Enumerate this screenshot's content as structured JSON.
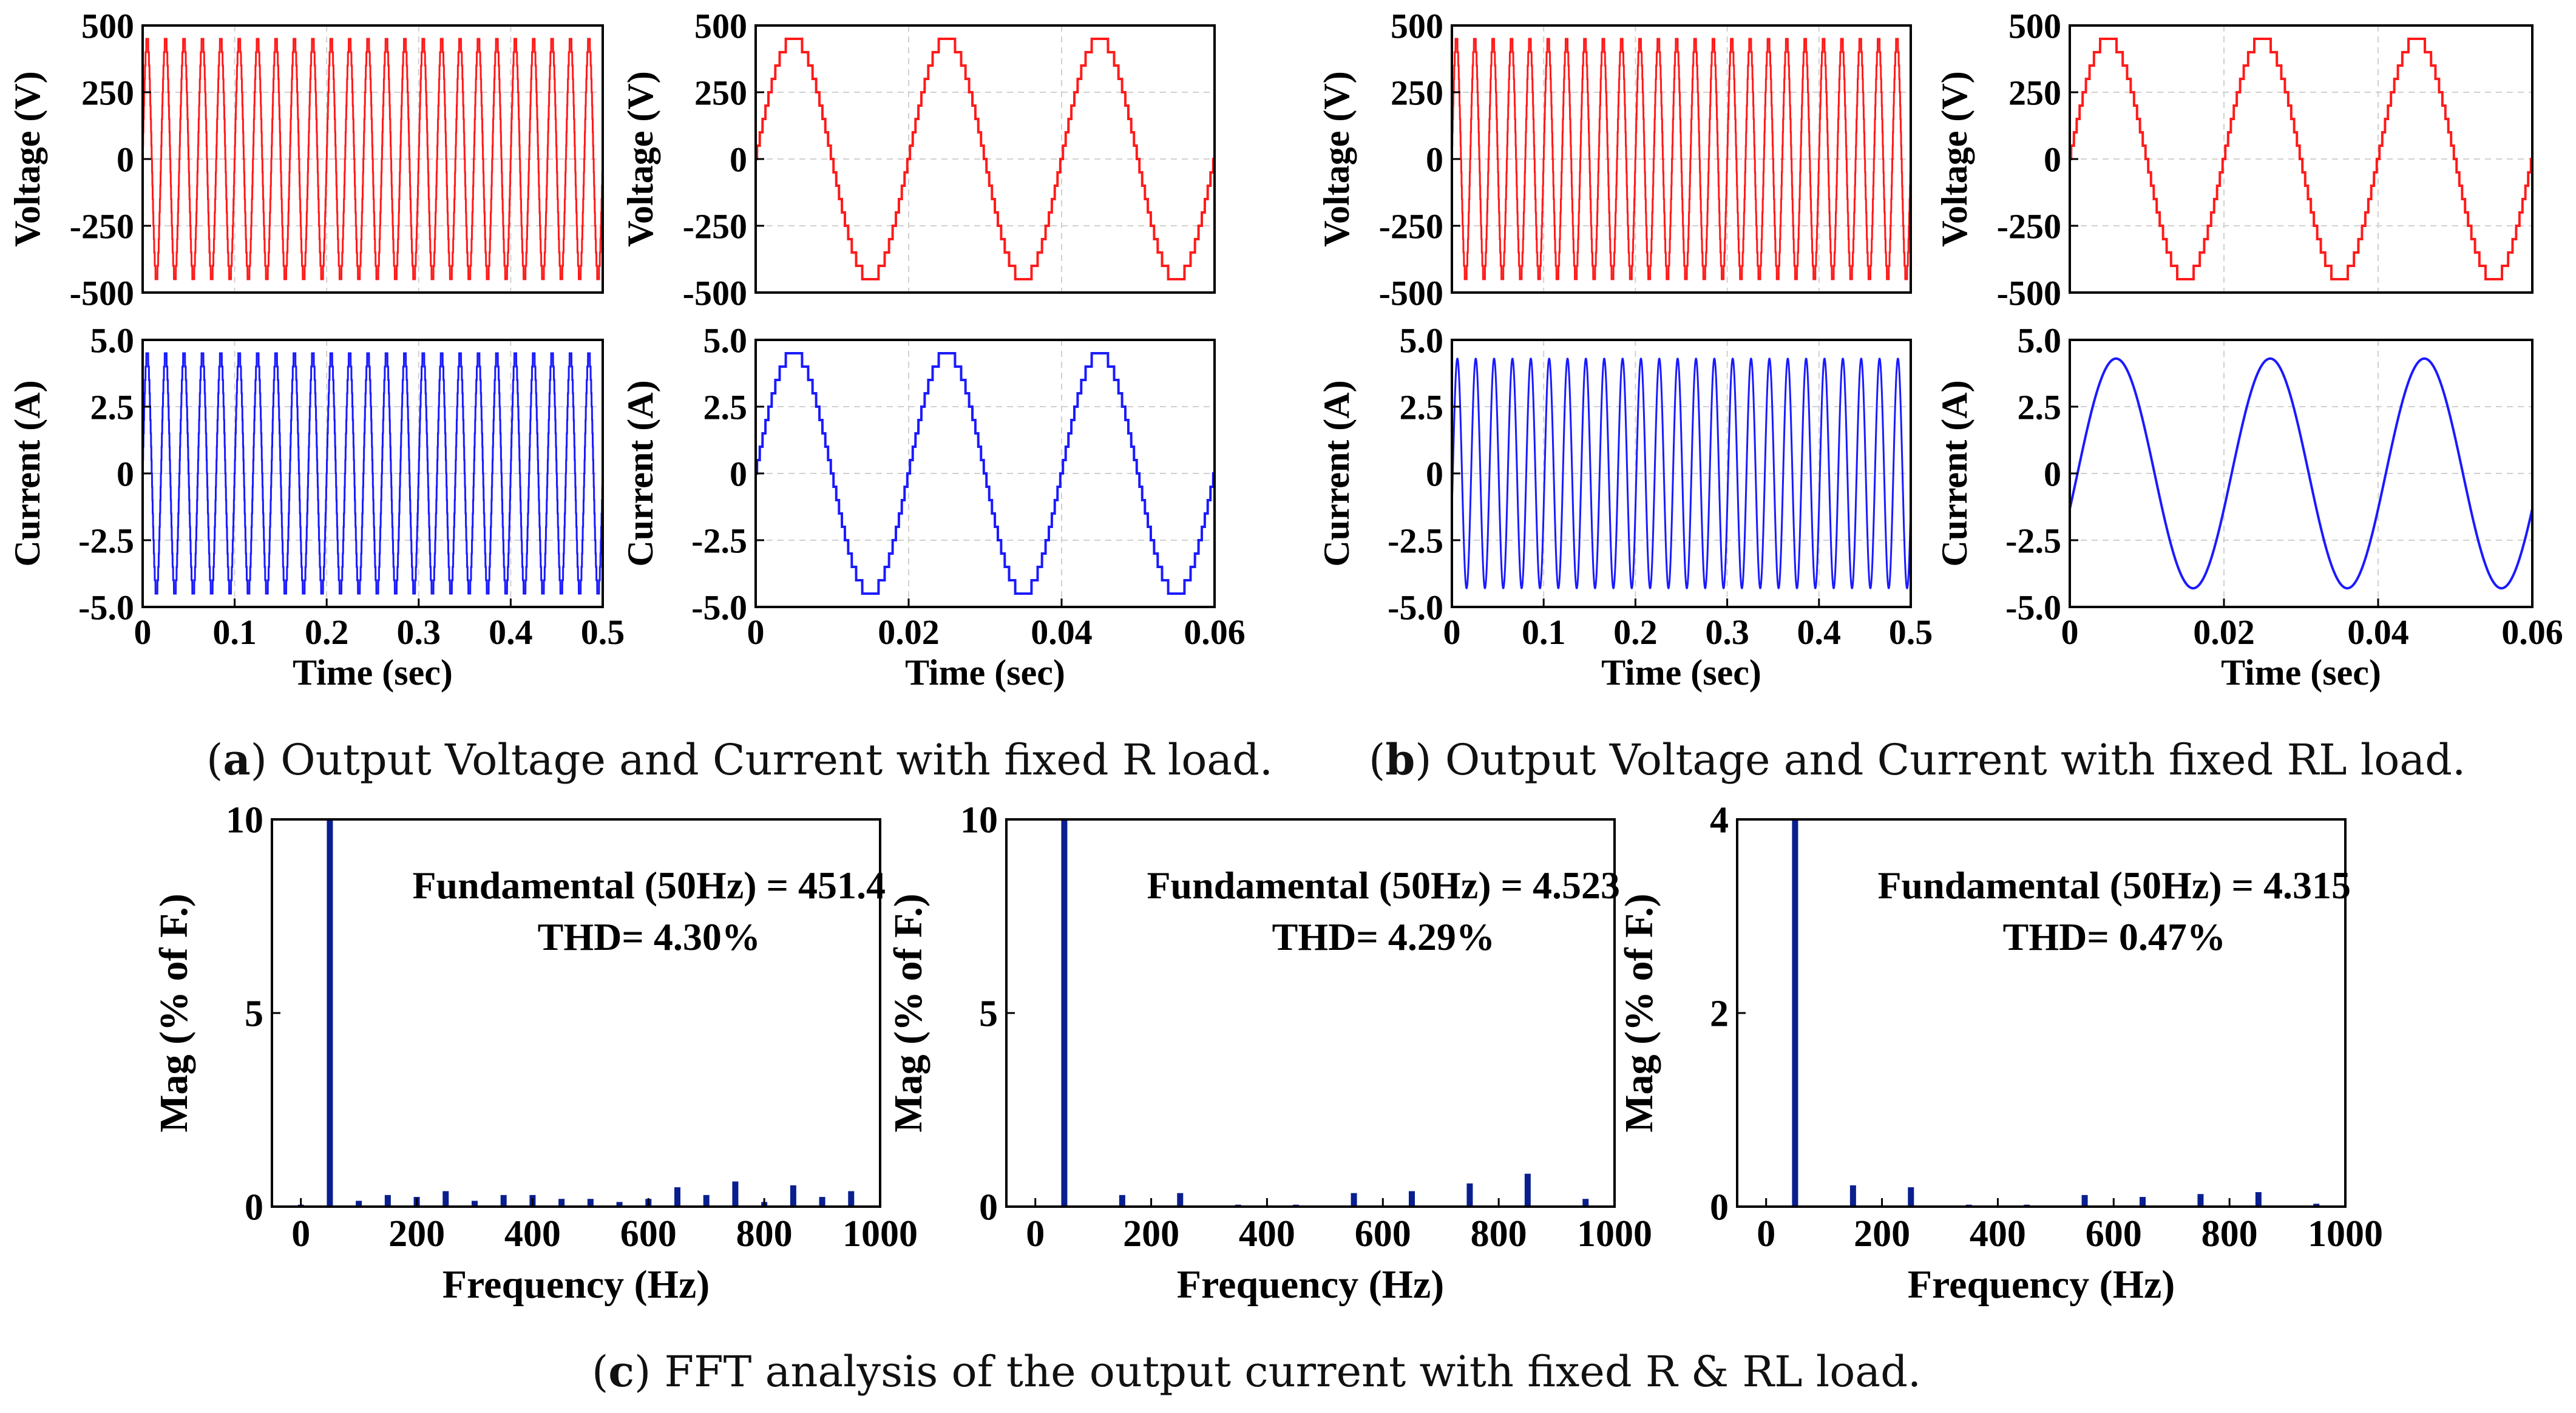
{
  "colors": {
    "voltage": "#ff1a1a",
    "current": "#1a1aff",
    "fft_bar": "#0a1f8f",
    "grid": "#d0d0d0",
    "axis": "#000000"
  },
  "captions": {
    "a": {
      "letter": "a",
      "text": "Output Voltage and Current with fixed R load."
    },
    "b": {
      "letter": "b",
      "text": "Output Voltage and Current with fixed RL load."
    },
    "c": {
      "letter": "c",
      "text": "FFT analysis of the output current with fixed R & RL load."
    }
  },
  "chart_data": [
    {
      "id": "a-voltage-full",
      "type": "line",
      "ylabel": "Voltage (V)",
      "xlabel": "",
      "xlim": [
        0,
        0.5
      ],
      "ylim": [
        -500,
        500
      ],
      "yticks": [
        -500,
        -250,
        0,
        250,
        500
      ],
      "ytick_labels": [
        "-500",
        "-250",
        "0",
        "250",
        "500"
      ],
      "xticks": [],
      "xtick_labels": [],
      "grid": true,
      "series": [
        {
          "waveform": "staircase-sine",
          "amplitude": 450,
          "frequency_hz": 50,
          "steps": 9,
          "color": "voltage"
        }
      ]
    },
    {
      "id": "a-voltage-zoom",
      "type": "line",
      "ylabel": "Voltage (V)",
      "xlabel": "",
      "xlim": [
        0,
        0.06
      ],
      "ylim": [
        -500,
        500
      ],
      "yticks": [
        -500,
        -250,
        0,
        250,
        500
      ],
      "ytick_labels": [
        "-500",
        "-250",
        "0",
        "250",
        "500"
      ],
      "xticks": [],
      "xtick_labels": [],
      "grid": true,
      "series": [
        {
          "waveform": "staircase-sine",
          "amplitude": 450,
          "frequency_hz": 50,
          "steps": 9,
          "color": "voltage"
        }
      ]
    },
    {
      "id": "a-current-full",
      "type": "line",
      "ylabel": "Current (A)",
      "xlabel": "Time (sec)",
      "xlim": [
        0,
        0.5
      ],
      "ylim": [
        -5,
        5
      ],
      "yticks": [
        -5,
        -2.5,
        0,
        2.5,
        5
      ],
      "ytick_labels": [
        "-5.0",
        "-2.5",
        "0",
        "2.5",
        "5.0"
      ],
      "xticks": [
        0,
        0.1,
        0.2,
        0.3,
        0.4,
        0.5
      ],
      "xtick_labels": [
        "0",
        "0.1",
        "0.2",
        "0.3",
        "0.4",
        "0.5"
      ],
      "grid": true,
      "series": [
        {
          "waveform": "staircase-sine",
          "amplitude": 4.5,
          "frequency_hz": 50,
          "steps": 9,
          "color": "current"
        }
      ]
    },
    {
      "id": "a-current-zoom",
      "type": "line",
      "ylabel": "Current (A)",
      "xlabel": "Time (sec)",
      "xlim": [
        0,
        0.06
      ],
      "ylim": [
        -5,
        5
      ],
      "yticks": [
        -5,
        -2.5,
        0,
        2.5,
        5
      ],
      "ytick_labels": [
        "-5.0",
        "-2.5",
        "0",
        "2.5",
        "5.0"
      ],
      "xticks": [
        0,
        0.02,
        0.04,
        0.06
      ],
      "xtick_labels": [
        "0",
        "0.02",
        "0.04",
        "0.06"
      ],
      "grid": true,
      "series": [
        {
          "waveform": "staircase-sine",
          "amplitude": 4.5,
          "frequency_hz": 50,
          "steps": 9,
          "color": "current"
        }
      ]
    },
    {
      "id": "b-voltage-full",
      "type": "line",
      "ylabel": "Voltage (V)",
      "xlabel": "",
      "xlim": [
        0,
        0.5
      ],
      "ylim": [
        -500,
        500
      ],
      "yticks": [
        -500,
        -250,
        0,
        250,
        500
      ],
      "ytick_labels": [
        "-500",
        "-250",
        "0",
        "250",
        "500"
      ],
      "xticks": [],
      "xtick_labels": [],
      "grid": true,
      "series": [
        {
          "waveform": "staircase-sine",
          "amplitude": 450,
          "frequency_hz": 50,
          "steps": 9,
          "color": "voltage"
        }
      ]
    },
    {
      "id": "b-voltage-zoom",
      "type": "line",
      "ylabel": "Voltage (V)",
      "xlabel": "",
      "xlim": [
        0,
        0.06
      ],
      "ylim": [
        -500,
        500
      ],
      "yticks": [
        -500,
        -250,
        0,
        250,
        500
      ],
      "ytick_labels": [
        "-500",
        "-250",
        "0",
        "250",
        "500"
      ],
      "xticks": [],
      "xtick_labels": [],
      "grid": true,
      "series": [
        {
          "waveform": "staircase-sine",
          "amplitude": 450,
          "frequency_hz": 50,
          "steps": 9,
          "color": "voltage"
        }
      ]
    },
    {
      "id": "b-current-full",
      "type": "line",
      "ylabel": "Current (A)",
      "xlabel": "Time (sec)",
      "xlim": [
        0,
        0.5
      ],
      "ylim": [
        -5,
        5
      ],
      "yticks": [
        -5,
        -2.5,
        0,
        2.5,
        5
      ],
      "ytick_labels": [
        "-5.0",
        "-2.5",
        "0",
        "2.5",
        "5.0"
      ],
      "xticks": [
        0,
        0.1,
        0.2,
        0.3,
        0.4,
        0.5
      ],
      "xtick_labels": [
        "0",
        "0.1",
        "0.2",
        "0.3",
        "0.4",
        "0.5"
      ],
      "grid": true,
      "series": [
        {
          "waveform": "sine",
          "amplitude": 4.3,
          "frequency_hz": 50,
          "phase_lag_s": 0.001,
          "color": "current"
        }
      ]
    },
    {
      "id": "b-current-zoom",
      "type": "line",
      "ylabel": "Current (A)",
      "xlabel": "Time (sec)",
      "xlim": [
        0,
        0.06
      ],
      "ylim": [
        -5,
        5
      ],
      "yticks": [
        -5,
        -2.5,
        0,
        2.5,
        5
      ],
      "ytick_labels": [
        "-5.0",
        "-2.5",
        "0",
        "2.5",
        "5.0"
      ],
      "xticks": [
        0,
        0.02,
        0.04,
        0.06
      ],
      "xtick_labels": [
        "0",
        "0.02",
        "0.04",
        "0.06"
      ],
      "grid": true,
      "series": [
        {
          "waveform": "sine",
          "amplitude": 4.3,
          "frequency_hz": 50,
          "phase_lag_s": 0.001,
          "color": "current"
        }
      ]
    },
    {
      "id": "c-fft-1",
      "type": "bar",
      "ylabel": "Mag (% of F.)",
      "xlabel": "Frequency (Hz)",
      "xlim": [
        -50,
        1000
      ],
      "ylim": [
        0,
        10
      ],
      "yticks": [
        0,
        5,
        10
      ],
      "ytick_labels": [
        "0",
        "5",
        "10"
      ],
      "xticks": [
        0,
        200,
        400,
        600,
        800,
        1000
      ],
      "xtick_labels": [
        "0",
        "200",
        "400",
        "600",
        "800",
        "1000"
      ],
      "grid": false,
      "annotation": [
        "Fundamental (50Hz) = 451.4",
        "THD= 4.30%"
      ],
      "x": [
        0,
        50,
        100,
        150,
        200,
        250,
        300,
        350,
        400,
        450,
        500,
        550,
        600,
        650,
        700,
        750,
        800,
        850,
        900,
        950
      ],
      "values": [
        0.05,
        10,
        0.15,
        0.3,
        0.25,
        0.4,
        0.15,
        0.3,
        0.3,
        0.2,
        0.2,
        0.12,
        0.2,
        0.5,
        0.3,
        0.65,
        0.12,
        0.55,
        0.25,
        0.4
      ]
    },
    {
      "id": "c-fft-2",
      "type": "bar",
      "ylabel": "Mag (% of F.)",
      "xlabel": "Frequency (Hz)",
      "xlim": [
        -50,
        1000
      ],
      "ylim": [
        0,
        10
      ],
      "yticks": [
        0,
        5,
        10
      ],
      "ytick_labels": [
        "0",
        "5",
        "10"
      ],
      "xticks": [
        0,
        200,
        400,
        600,
        800,
        1000
      ],
      "xtick_labels": [
        "0",
        "200",
        "400",
        "600",
        "800",
        "1000"
      ],
      "grid": false,
      "annotation": [
        "Fundamental (50Hz) = 4.523",
        "THD= 4.29%"
      ],
      "x": [
        50,
        150,
        250,
        350,
        450,
        550,
        650,
        750,
        850,
        950
      ],
      "values": [
        10,
        0.3,
        0.35,
        0.05,
        0.05,
        0.35,
        0.4,
        0.6,
        0.85,
        0.2
      ]
    },
    {
      "id": "c-fft-3",
      "type": "bar",
      "ylabel": "Mag (% of F.)",
      "xlabel": "Frequency (Hz)",
      "xlim": [
        -50,
        1000
      ],
      "ylim": [
        0,
        4
      ],
      "yticks": [
        0,
        2,
        4
      ],
      "ytick_labels": [
        "0",
        "2",
        "4"
      ],
      "xticks": [
        0,
        200,
        400,
        600,
        800,
        1000
      ],
      "xtick_labels": [
        "0",
        "200",
        "400",
        "600",
        "800",
        "1000"
      ],
      "grid": false,
      "annotation": [
        "Fundamental (50Hz) = 4.315",
        "THD= 0.47%"
      ],
      "x": [
        50,
        150,
        250,
        350,
        450,
        550,
        650,
        750,
        850,
        950
      ],
      "values": [
        4,
        0.22,
        0.2,
        0.02,
        0.02,
        0.12,
        0.1,
        0.13,
        0.15,
        0.03
      ]
    }
  ]
}
